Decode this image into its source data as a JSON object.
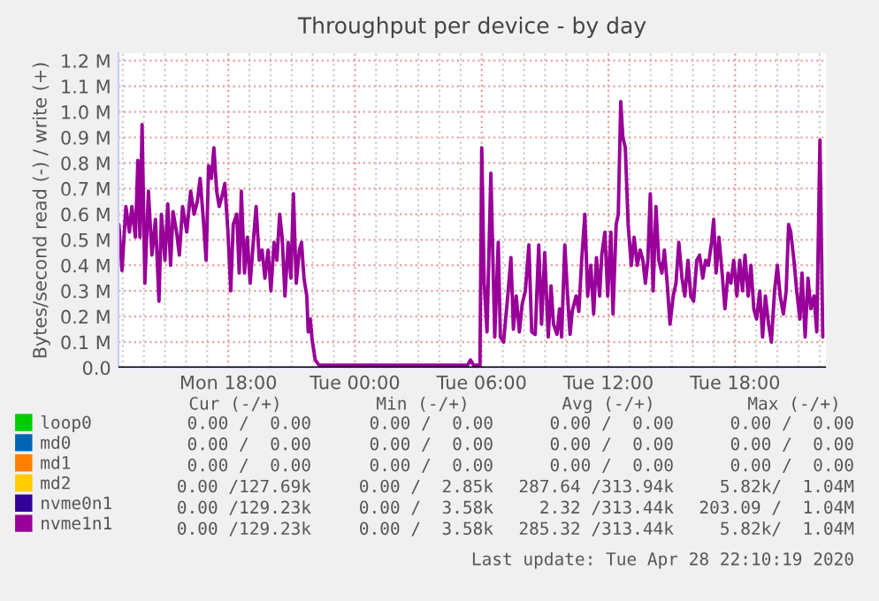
{
  "chart_data": {
    "type": "line",
    "title": "Throughput per device - by day",
    "ylabel": "Bytes/second read (-) / write (+)",
    "xlim": [
      "2020-04-27T12:48",
      "2020-04-28T22:18"
    ],
    "xticks": [
      {
        "value": "2020-04-27T13:00",
        "label": null
      },
      {
        "value": "2020-04-27T14:00",
        "label": null
      },
      {
        "value": "2020-04-27T15:00",
        "label": null
      },
      {
        "value": "2020-04-27T16:00",
        "label": null
      },
      {
        "value": "2020-04-27T17:00",
        "label": null
      },
      {
        "value": "2020-04-27T18:00",
        "label": "Mon 18:00"
      },
      {
        "value": "2020-04-27T19:00",
        "label": null
      },
      {
        "value": "2020-04-27T20:00",
        "label": null
      },
      {
        "value": "2020-04-27T21:00",
        "label": null
      },
      {
        "value": "2020-04-27T22:00",
        "label": null
      },
      {
        "value": "2020-04-27T23:00",
        "label": null
      },
      {
        "value": "2020-04-28T00:00",
        "label": "Tue 00:00"
      },
      {
        "value": "2020-04-28T01:00",
        "label": null
      },
      {
        "value": "2020-04-28T02:00",
        "label": null
      },
      {
        "value": "2020-04-28T03:00",
        "label": null
      },
      {
        "value": "2020-04-28T04:00",
        "label": null
      },
      {
        "value": "2020-04-28T05:00",
        "label": null
      },
      {
        "value": "2020-04-28T06:00",
        "label": "Tue 06:00"
      },
      {
        "value": "2020-04-28T07:00",
        "label": null
      },
      {
        "value": "2020-04-28T08:00",
        "label": null
      },
      {
        "value": "2020-04-28T09:00",
        "label": null
      },
      {
        "value": "2020-04-28T10:00",
        "label": null
      },
      {
        "value": "2020-04-28T11:00",
        "label": null
      },
      {
        "value": "2020-04-28T12:00",
        "label": "Tue 12:00"
      },
      {
        "value": "2020-04-28T13:00",
        "label": null
      },
      {
        "value": "2020-04-28T14:00",
        "label": null
      },
      {
        "value": "2020-04-28T15:00",
        "label": null
      },
      {
        "value": "2020-04-28T16:00",
        "label": null
      },
      {
        "value": "2020-04-28T17:00",
        "label": null
      },
      {
        "value": "2020-04-28T18:00",
        "label": "Tue 18:00"
      },
      {
        "value": "2020-04-28T19:00",
        "label": null
      },
      {
        "value": "2020-04-28T20:00",
        "label": null
      },
      {
        "value": "2020-04-28T21:00",
        "label": null
      },
      {
        "value": "2020-04-28T22:00",
        "label": null
      }
    ],
    "ylim": [
      0,
      1230000
    ],
    "yticks": [
      {
        "value": 0,
        "label": "0.0"
      },
      {
        "value": 100000,
        "label": "0.1 M"
      },
      {
        "value": 200000,
        "label": "0.2 M"
      },
      {
        "value": 300000,
        "label": "0.3 M"
      },
      {
        "value": 400000,
        "label": "0.4 M"
      },
      {
        "value": 500000,
        "label": "0.5 M"
      },
      {
        "value": 600000,
        "label": "0.6 M"
      },
      {
        "value": 700000,
        "label": "0.7 M"
      },
      {
        "value": 800000,
        "label": "0.8 M"
      },
      {
        "value": 900000,
        "label": "0.9 M"
      },
      {
        "value": 1000000,
        "label": "1.0 M"
      },
      {
        "value": 1100000,
        "label": "1.1 M"
      },
      {
        "value": 1200000,
        "label": "1.2 M"
      }
    ],
    "grid": true,
    "legend": "bottom",
    "ref_lines": [
      {
        "axis": "y",
        "value": 0,
        "color": "#000000"
      }
    ],
    "series": [
      {
        "name": "loop0",
        "color": "#00cc00"
      },
      {
        "name": "md0",
        "color": "#0066b3"
      },
      {
        "name": "md1",
        "color": "#ff8000"
      },
      {
        "name": "md2",
        "color": "#ffcc00"
      },
      {
        "name": "nvme0n1",
        "color": "#330099"
      },
      {
        "name": "nvme1n1",
        "color": "#990099",
        "x": [
          "2020-04-27T12:49",
          "2020-04-27T12:58",
          "2020-04-27T13:09",
          "2020-04-27T13:19",
          "2020-04-27T13:26",
          "2020-04-27T13:36",
          "2020-04-27T13:43",
          "2020-04-27T13:49",
          "2020-04-27T13:55",
          "2020-04-27T14:03",
          "2020-04-27T14:13",
          "2020-04-27T14:23",
          "2020-04-27T14:33",
          "2020-04-27T14:43",
          "2020-04-27T14:50",
          "2020-04-27T15:00",
          "2020-04-27T15:08",
          "2020-04-27T15:16",
          "2020-04-27T15:23",
          "2020-04-27T15:33",
          "2020-04-27T15:41",
          "2020-04-27T15:50",
          "2020-04-27T16:02",
          "2020-04-27T16:13",
          "2020-04-27T16:23",
          "2020-04-27T16:32",
          "2020-04-27T16:40",
          "2020-04-27T16:49",
          "2020-04-27T16:57",
          "2020-04-27T17:04",
          "2020-04-27T17:12",
          "2020-04-27T17:19",
          "2020-04-27T17:27",
          "2020-04-27T17:34",
          "2020-04-27T17:42",
          "2020-04-27T17:50",
          "2020-04-27T17:59",
          "2020-04-27T18:07",
          "2020-04-27T18:14",
          "2020-04-27T18:24",
          "2020-04-27T18:31",
          "2020-04-27T18:37",
          "2020-04-27T18:46",
          "2020-04-27T18:54",
          "2020-04-27T19:02",
          "2020-04-27T19:11",
          "2020-04-27T19:19",
          "2020-04-27T19:28",
          "2020-04-27T19:36",
          "2020-04-27T19:44",
          "2020-04-27T19:53",
          "2020-04-27T20:01",
          "2020-04-27T20:10",
          "2020-04-27T20:18",
          "2020-04-27T20:26",
          "2020-04-27T20:33",
          "2020-04-27T20:41",
          "2020-04-27T20:50",
          "2020-04-27T20:58",
          "2020-04-27T21:05",
          "2020-04-27T21:13",
          "2020-04-27T21:22",
          "2020-04-27T21:28",
          "2020-04-27T21:35",
          "2020-04-27T21:43",
          "2020-04-27T21:47",
          "2020-04-27T21:53",
          "2020-04-27T21:58",
          "2020-04-27T22:07",
          "2020-04-27T22:18",
          "2020-04-28T03:19",
          "2020-04-28T05:20",
          "2020-04-28T05:28",
          "2020-04-28T05:37",
          "2020-04-28T05:55",
          "2020-04-28T06:00",
          "2020-04-28T06:07",
          "2020-04-28T06:15",
          "2020-04-28T06:26",
          "2020-04-28T06:37",
          "2020-04-28T06:47",
          "2020-04-28T06:53",
          "2020-04-28T07:02",
          "2020-04-28T07:14",
          "2020-04-28T07:23",
          "2020-04-28T07:30",
          "2020-04-28T07:38",
          "2020-04-28T07:47",
          "2020-04-28T07:55",
          "2020-04-28T08:04",
          "2020-04-28T08:14",
          "2020-04-28T08:22",
          "2020-04-28T08:32",
          "2020-04-28T08:42",
          "2020-04-28T08:50",
          "2020-04-28T08:59",
          "2020-04-28T09:09",
          "2020-04-28T09:17",
          "2020-04-28T09:24",
          "2020-04-28T09:34",
          "2020-04-28T09:41",
          "2020-04-28T09:47",
          "2020-04-28T09:56",
          "2020-04-28T10:04",
          "2020-04-28T10:11",
          "2020-04-28T10:17",
          "2020-04-28T10:28",
          "2020-04-28T10:36",
          "2020-04-28T10:44",
          "2020-04-28T10:53",
          "2020-04-28T11:01",
          "2020-04-28T11:10",
          "2020-04-28T11:18",
          "2020-04-28T11:26",
          "2020-04-28T11:35",
          "2020-04-28T11:41",
          "2020-04-28T11:50",
          "2020-04-28T11:58",
          "2020-04-28T12:07",
          "2020-04-28T12:13",
          "2020-04-28T12:22",
          "2020-04-28T12:28",
          "2020-04-28T12:35",
          "2020-04-28T12:41",
          "2020-04-28T12:48",
          "2020-04-28T12:56",
          "2020-04-28T13:05",
          "2020-04-28T13:13",
          "2020-04-28T13:22",
          "2020-04-28T13:30",
          "2020-04-28T13:38",
          "2020-04-28T13:45",
          "2020-04-28T13:52",
          "2020-04-28T13:59",
          "2020-04-28T14:07",
          "2020-04-28T14:15",
          "2020-04-28T14:23",
          "2020-04-28T14:32",
          "2020-04-28T14:39",
          "2020-04-28T14:47",
          "2020-04-28T14:55",
          "2020-04-28T15:04",
          "2020-04-28T15:12",
          "2020-04-28T15:20",
          "2020-04-28T15:29",
          "2020-04-28T15:37",
          "2020-04-28T15:46",
          "2020-04-28T15:54",
          "2020-04-28T16:02",
          "2020-04-28T16:11",
          "2020-04-28T16:19",
          "2020-04-28T16:28",
          "2020-04-28T16:36",
          "2020-04-28T16:44",
          "2020-04-28T16:53",
          "2020-04-28T16:59",
          "2020-04-28T17:06",
          "2020-04-28T17:14",
          "2020-04-28T17:23",
          "2020-04-28T17:31",
          "2020-04-28T17:40",
          "2020-04-28T17:48",
          "2020-04-28T17:56",
          "2020-04-28T18:05",
          "2020-04-28T18:13",
          "2020-04-28T18:21",
          "2020-04-28T18:28",
          "2020-04-28T18:37",
          "2020-04-28T18:45",
          "2020-04-28T18:53",
          "2020-04-28T19:01",
          "2020-04-28T19:10",
          "2020-04-28T19:18",
          "2020-04-28T19:26",
          "2020-04-28T19:35",
          "2020-04-28T19:43",
          "2020-04-28T19:52",
          "2020-04-28T20:00",
          "2020-04-28T20:08",
          "2020-04-28T20:17",
          "2020-04-28T20:25",
          "2020-04-28T20:32",
          "2020-04-28T20:38",
          "2020-04-28T20:47",
          "2020-04-28T20:55",
          "2020-04-28T21:04",
          "2020-04-28T21:10",
          "2020-04-28T21:19",
          "2020-04-28T21:27",
          "2020-04-28T21:35",
          "2020-04-28T21:44",
          "2020-04-28T21:52",
          "2020-04-28T22:01",
          "2020-04-28T22:09"
        ],
        "values": [
          560000,
          380000,
          630000,
          530000,
          630000,
          510000,
          810000,
          510000,
          950000,
          330000,
          690000,
          440000,
          580000,
          260000,
          600000,
          420000,
          640000,
          400000,
          610000,
          530000,
          440000,
          630000,
          530000,
          690000,
          600000,
          650000,
          740000,
          580000,
          420000,
          790000,
          740000,
          860000,
          690000,
          630000,
          670000,
          720000,
          530000,
          300000,
          560000,
          600000,
          370000,
          690000,
          370000,
          510000,
          330000,
          490000,
          630000,
          420000,
          460000,
          350000,
          460000,
          300000,
          490000,
          420000,
          600000,
          510000,
          280000,
          490000,
          350000,
          680000,
          330000,
          460000,
          490000,
          350000,
          280000,
          140000,
          190000,
          110000,
          30000,
          10000,
          10000,
          10000,
          30000,
          10000,
          10000,
          860000,
          330000,
          140000,
          760000,
          120000,
          490000,
          120000,
          100000,
          280000,
          430000,
          150000,
          280000,
          140000,
          250000,
          300000,
          480000,
          140000,
          130000,
          480000,
          170000,
          450000,
          120000,
          320000,
          170000,
          130000,
          230000,
          120000,
          480000,
          280000,
          130000,
          220000,
          280000,
          220000,
          420000,
          600000,
          280000,
          400000,
          210000,
          430000,
          280000,
          440000,
          530000,
          280000,
          530000,
          210000,
          560000,
          600000,
          1040000,
          900000,
          860000,
          560000,
          400000,
          510000,
          400000,
          460000,
          420000,
          330000,
          420000,
          680000,
          300000,
          630000,
          420000,
          370000,
          460000,
          330000,
          170000,
          280000,
          330000,
          490000,
          350000,
          280000,
          420000,
          280000,
          260000,
          420000,
          440000,
          350000,
          420000,
          400000,
          490000,
          580000,
          370000,
          510000,
          370000,
          230000,
          370000,
          330000,
          420000,
          280000,
          420000,
          300000,
          440000,
          280000,
          400000,
          230000,
          190000,
          300000,
          120000,
          280000,
          170000,
          100000,
          300000,
          400000,
          280000,
          210000,
          300000,
          560000,
          530000,
          420000,
          300000,
          190000,
          370000,
          120000,
          350000,
          230000,
          280000,
          140000,
          890000,
          120000
        ]
      }
    ],
    "annotations": [
      "Cur (-/+)",
      "Min (-/+)",
      "Avg (-/+)",
      "Max (-/+)",
      "0.00 /  0.00",
      "0.00 /  0.00",
      "0.00 /  0.00",
      "0.00 /  0.00",
      "0.00 /  0.00",
      "0.00 /  0.00",
      "0.00 /  0.00",
      "0.00 /  0.00",
      "0.00 /  0.00",
      "0.00 /  0.00",
      "0.00 /  0.00",
      "0.00 /  0.00",
      "0.00 /127.69k",
      "0.00 /  2.85k",
      "287.64 /313.94k",
      "5.82k/  1.04M",
      "0.00 /129.23k",
      "0.00 /  3.58k",
      "2.32 /313.44k",
      "203.09 /  1.04M",
      "0.00 /129.23k",
      "0.00 /  3.58k",
      "285.32 /313.44k",
      "5.82k/  1.04M",
      "Last update: Tue Apr 28 22:10:19 2020"
    ]
  }
}
